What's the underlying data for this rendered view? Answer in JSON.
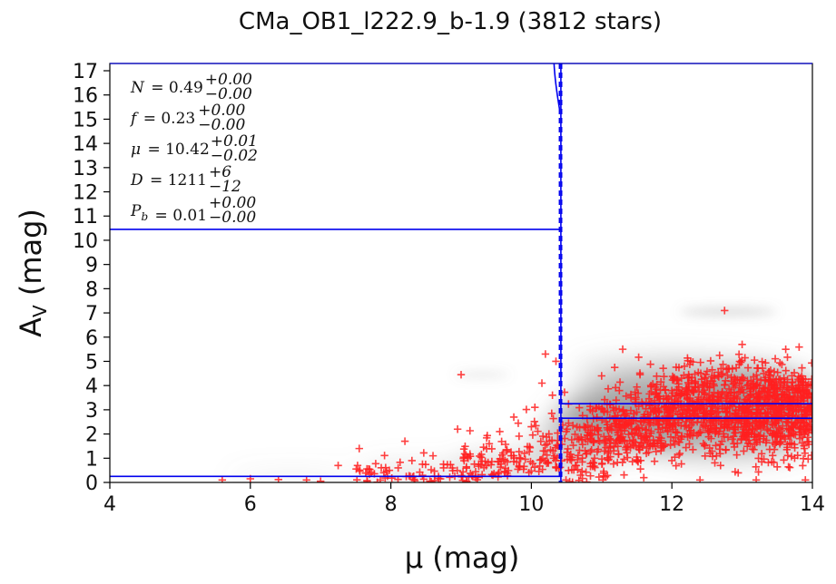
{
  "chart_data": {
    "type": "scatter",
    "title": "CMa_OB1_l222.9_b-1.9 (3812 stars)",
    "xlabel": "μ (mag)",
    "ylabel": "A_V (mag)",
    "xlim": [
      4,
      14
    ],
    "ylim": [
      0,
      17.3
    ],
    "xticks": [
      4,
      6,
      8,
      10,
      12,
      14
    ],
    "yticks": [
      0,
      1,
      2,
      3,
      4,
      5,
      6,
      7,
      8,
      9,
      10,
      11,
      12,
      13,
      14,
      15,
      16,
      17
    ],
    "grid": false,
    "colors": {
      "points": "#ff2020",
      "model": "#0000ee",
      "density": "#808080",
      "frame": "#0000cc"
    },
    "annotations": [
      {
        "var": "N",
        "value": "0.49",
        "plus": "+0.00",
        "minus": "−0.00"
      },
      {
        "var": "f",
        "value": "0.23",
        "plus": "+0.00",
        "minus": "−0.00"
      },
      {
        "var": "μ",
        "value": "10.42",
        "plus": "+0.01",
        "minus": "−0.02"
      },
      {
        "var": "D",
        "value": "1211",
        "plus": "+6",
        "minus": "−12"
      },
      {
        "var": "P",
        "sub": "b",
        "value": "0.01",
        "plus": "+0.00",
        "minus": "−0.00"
      }
    ],
    "model": {
      "mu": 10.42,
      "mu_lo": 10.4,
      "mu_hi": 10.43,
      "foreground_av": 0.25,
      "background_av_low": 2.65,
      "background_av_high": 3.25,
      "extra_level_av": 10.45
    },
    "points_outliers": [
      [
        5.6,
        0.1
      ],
      [
        6.0,
        0.15
      ],
      [
        6.4,
        0.12
      ],
      [
        6.8,
        0.1
      ],
      [
        7.0,
        0.05
      ],
      [
        7.25,
        0.7
      ],
      [
        7.55,
        1.4
      ],
      [
        7.9,
        0.4
      ],
      [
        8.2,
        1.7
      ],
      [
        8.3,
        0.9
      ],
      [
        8.45,
        0.75
      ],
      [
        8.6,
        1.1
      ],
      [
        8.75,
        0.6
      ],
      [
        8.95,
        2.2
      ],
      [
        9.0,
        4.45
      ],
      [
        9.1,
        1.0
      ],
      [
        9.25,
        0.75
      ],
      [
        9.4,
        1.6
      ],
      [
        9.55,
        2.1
      ],
      [
        9.65,
        1.3
      ],
      [
        9.75,
        2.7
      ],
      [
        9.9,
        1.2
      ],
      [
        10.0,
        2.3
      ],
      [
        10.05,
        3.1
      ],
      [
        10.15,
        4.1
      ],
      [
        10.2,
        5.3
      ],
      [
        10.25,
        2.0
      ],
      [
        10.3,
        3.6
      ],
      [
        10.35,
        5.0
      ],
      [
        10.38,
        1.5
      ],
      [
        12.75,
        7.1
      ],
      [
        13.0,
        5.7
      ],
      [
        13.9,
        0.1
      ],
      [
        11.0,
        4.4
      ],
      [
        11.3,
        5.5
      ],
      [
        13.5,
        1.7
      ],
      [
        10.9,
        1.0
      ],
      [
        11.6,
        0.2
      ],
      [
        12.4,
        0.1
      ],
      [
        13.2,
        0.1
      ],
      [
        12.0,
        0.9
      ],
      [
        10.7,
        0.3
      ]
    ]
  }
}
